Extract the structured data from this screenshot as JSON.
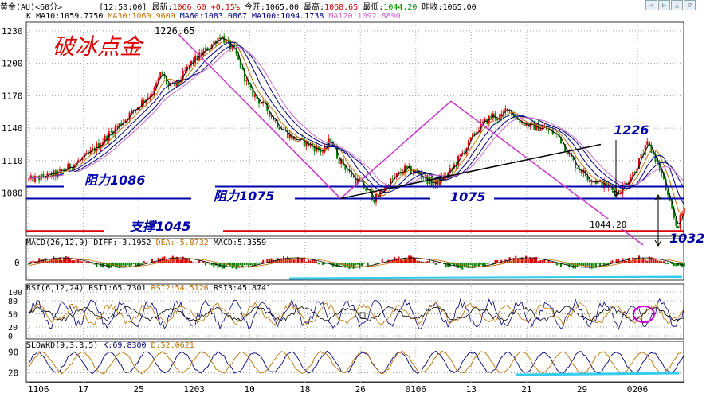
{
  "header": {
    "symbol": "黄金(AU)<60分>",
    "time": "[12:50:00]",
    "last_label": "最新:",
    "last": "1066.60",
    "change": "+0.15%",
    "open_label": "今开:",
    "open": "1065.00",
    "high_label": "最高:",
    "high": "1068.65",
    "low_label": "最低:",
    "low": "1044.20",
    "prev_label": "昨收:",
    "prev": "1065.00",
    "controls": [
      "◁",
      "▷",
      "△",
      "▽"
    ]
  },
  "ma_legend": [
    {
      "text": "K",
      "color": "#000000"
    },
    {
      "text": "MA10:1059.7750",
      "color": "#000000"
    },
    {
      "text": "MA30:1060.9600",
      "color": "#c07000"
    },
    {
      "text": "MA60:1083.0867",
      "color": "#000080"
    },
    {
      "text": "MA100:1094.1738",
      "color": "#000080"
    },
    {
      "text": "MA120:1092.8890",
      "color": "#cc66cc"
    }
  ],
  "annotations": {
    "title": "破冰点金",
    "peak": "1226.65",
    "low": "1044.20",
    "res1086": "阻力1086",
    "res1075": "阻力1075",
    "mid1075": "1075",
    "sup1045": "支撑1045",
    "t1226": "1226",
    "t1032": "1032"
  },
  "chart_data": [
    {
      "type": "candlestick",
      "ylim": [
        1040,
        1238
      ],
      "yticks": [
        "1230",
        "1200",
        "1170",
        "1140",
        "1110",
        "1080"
      ],
      "ytick_values": [
        1230,
        1200,
        1170,
        1140,
        1110,
        1080
      ],
      "xticks": [
        "1106",
        "17",
        "25",
        "1203",
        "10",
        "18",
        "26",
        "0106",
        "13",
        "21",
        "29",
        "0206"
      ],
      "price_path": [
        [
          0,
          1092
        ],
        [
          4,
          1098
        ],
        [
          8,
          1115
        ],
        [
          11,
          1135
        ],
        [
          13,
          1148
        ],
        [
          15,
          1162
        ],
        [
          17,
          1175
        ],
        [
          18,
          1192
        ],
        [
          19,
          1178
        ],
        [
          20,
          1180
        ],
        [
          22,
          1200
        ],
        [
          24,
          1212
        ],
        [
          26,
          1226
        ],
        [
          28,
          1210
        ],
        [
          30,
          1175
        ],
        [
          32,
          1160
        ],
        [
          34,
          1142
        ],
        [
          36,
          1130
        ],
        [
          38,
          1125
        ],
        [
          40,
          1118
        ],
        [
          41,
          1130
        ],
        [
          42,
          1112
        ],
        [
          44,
          1095
        ],
        [
          46,
          1082
        ],
        [
          47,
          1074
        ],
        [
          49,
          1090
        ],
        [
          51,
          1102
        ],
        [
          53,
          1098
        ],
        [
          55,
          1088
        ],
        [
          57,
          1098
        ],
        [
          59,
          1118
        ],
        [
          61,
          1140
        ],
        [
          63,
          1152
        ],
        [
          64,
          1148
        ],
        [
          65,
          1160
        ],
        [
          66,
          1150
        ],
        [
          68,
          1142
        ],
        [
          70,
          1140
        ],
        [
          72,
          1132
        ],
        [
          74,
          1108
        ],
        [
          76,
          1094
        ],
        [
          78,
          1088
        ],
        [
          80,
          1080
        ],
        [
          82,
          1098
        ],
        [
          84,
          1125
        ],
        [
          85,
          1114
        ],
        [
          86,
          1096
        ],
        [
          87,
          1070
        ],
        [
          88,
          1048
        ],
        [
          89,
          1066
        ]
      ],
      "ma_lines": [
        {
          "name": "MA10",
          "color": "#000000",
          "window": 3
        },
        {
          "name": "MA30",
          "color": "#c07000",
          "window": 7
        },
        {
          "name": "MA60",
          "color": "#000080",
          "window": 12
        },
        {
          "name": "MA100",
          "color": "#000080",
          "window": 18
        },
        {
          "name": "MA120",
          "color": "#cc66cc",
          "window": 22
        }
      ],
      "levels": [
        {
          "value": 1086,
          "color": "#0000aa"
        },
        {
          "value": 1075,
          "color": "#0000aa"
        },
        {
          "value": 1045,
          "color": "#dd0000"
        }
      ],
      "trendlines": [
        {
          "from": [
            1226.65,
            0.232
          ],
          "to": [
            1075,
            0.478
          ],
          "color": "#cc33cc"
        },
        {
          "from": [
            1075,
            0.478
          ],
          "to": [
            1165,
            0.646
          ],
          "color": "#cc33cc"
        },
        {
          "from": [
            1165,
            0.646
          ],
          "to": [
            1032,
            0.938
          ],
          "color": "#cc33cc"
        },
        {
          "from": [
            1075,
            0.478
          ],
          "to": [
            1125,
            0.874
          ],
          "color": "#000000"
        }
      ]
    },
    {
      "type": "line",
      "title": "MACD(26,12,9)",
      "series": [
        {
          "name": "DIFF",
          "label": "DIFF:-3.1952",
          "color": "#000000"
        },
        {
          "name": "DEA",
          "label": "DEA:-5.8732",
          "color": "#c07000"
        },
        {
          "name": "MACD",
          "label": "MACD:5.3559",
          "color": "#dd0000"
        }
      ],
      "yticks": [
        "0"
      ]
    },
    {
      "type": "line",
      "title": "RSI(6,12,24)",
      "series": [
        {
          "name": "RSI1",
          "label": "RSI1:65.7301",
          "color": "#000080"
        },
        {
          "name": "RSI2",
          "label": "RSI2:54.5126",
          "color": "#c07000"
        },
        {
          "name": "RSI3",
          "label": "RSI3:45.8741",
          "color": "#000000"
        }
      ],
      "yticks": [
        "100",
        "80",
        "50",
        "20",
        "0"
      ],
      "ytick_values": [
        100,
        80,
        50,
        20,
        0
      ]
    },
    {
      "type": "line",
      "title": "SLOWKD(9,3,3,5)",
      "series": [
        {
          "name": "K",
          "label": "K:69.8300",
          "color": "#000080"
        },
        {
          "name": "D",
          "label": "D:52.0621",
          "color": "#c07000"
        }
      ],
      "yticks": [
        "90",
        "20"
      ],
      "ytick_values": [
        90,
        20
      ]
    }
  ]
}
